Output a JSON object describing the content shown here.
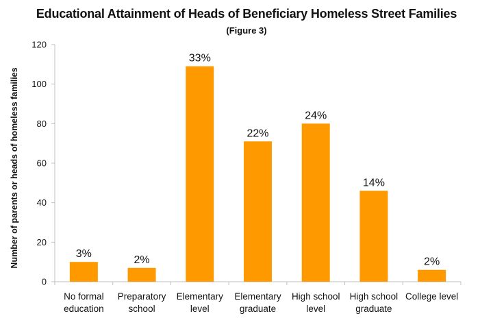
{
  "chart_data": {
    "type": "bar",
    "title": "Educational Attainment of Heads of Beneficiary Homeless Street Families",
    "subtitle": "(Figure 3)",
    "ylabel": "Number of parents or heads of homeless families",
    "xlabel": "",
    "ylim": [
      0,
      120
    ],
    "yticks": [
      0,
      20,
      40,
      60,
      80,
      100,
      120
    ],
    "grid": false,
    "categories": [
      [
        "No formal",
        "education"
      ],
      [
        "Preparatory",
        "school"
      ],
      [
        "Elementary",
        "level"
      ],
      [
        "Elementary",
        "graduate"
      ],
      [
        "High school",
        "level"
      ],
      [
        "High school",
        "graduate"
      ],
      [
        "College level"
      ]
    ],
    "values": [
      10,
      7,
      109,
      71,
      80,
      46,
      6
    ],
    "data_labels": [
      "3%",
      "2%",
      "33%",
      "22%",
      "24%",
      "14%",
      "2%"
    ],
    "bar_color": "#FF9900"
  }
}
